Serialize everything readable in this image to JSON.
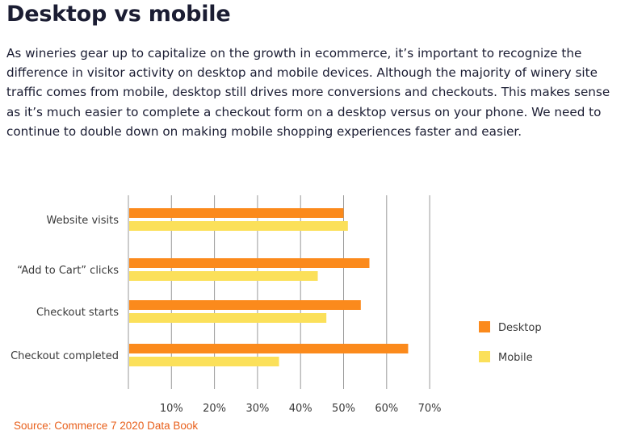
{
  "header": {
    "title": "Desktop vs mobile",
    "intro": "As wineries gear up to capitalize on the growth in ecommerce, it’s important to recognize the difference in visitor activity on desktop and mobile devices. Although the majority of winery site traffic comes from mobile, desktop still drives more conversions and checkouts. This makes sense as it’s much easier to complete a checkout form on a desktop versus on your phone. We need to continue to double down on making mobile shopping experiences faster and easier."
  },
  "chart_data": {
    "type": "bar",
    "orientation": "horizontal",
    "categories": [
      "Website visits",
      "“Add to Cart” clicks",
      "Checkout starts",
      "Checkout completed"
    ],
    "series": [
      {
        "name": "Desktop",
        "values": [
          50,
          56,
          54,
          65
        ],
        "color": "#fb8a1c"
      },
      {
        "name": "Mobile",
        "values": [
          51,
          44,
          46,
          35
        ],
        "color": "#fbe05a"
      }
    ],
    "xlim": [
      0,
      70
    ],
    "xticks": [
      10,
      20,
      30,
      40,
      50,
      60,
      70
    ],
    "xtick_labels": [
      "10%",
      "20%",
      "30%",
      "40%",
      "50%",
      "60%",
      "70%"
    ],
    "grid": true,
    "legend_position": "right"
  },
  "footer": {
    "source": "Source: Commerce 7 2020 Data Book"
  }
}
